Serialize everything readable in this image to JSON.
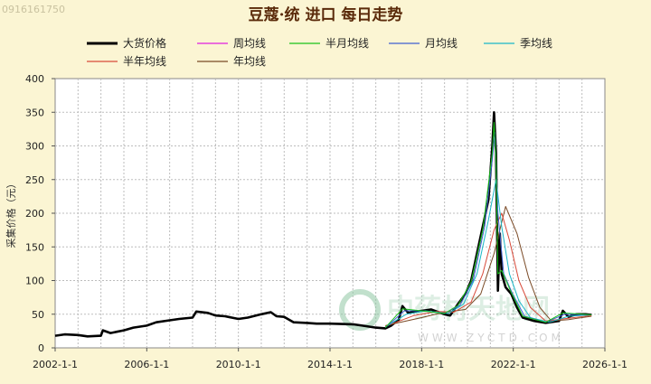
{
  "watermark_id": "0916161750",
  "chart_data": {
    "type": "line",
    "title": "豆蔻·统 进口 每日走势",
    "xlabel": "",
    "ylabel": "采集价格（元）",
    "xlim": [
      "2002-1-1",
      "2026-1-1"
    ],
    "ylim": [
      0,
      400
    ],
    "x_ticks": [
      "2002-1-1",
      "2006-1-1",
      "2010-1-1",
      "2014-1-1",
      "2018-1-1",
      "2022-1-1",
      "2026-1-1"
    ],
    "y_ticks": [
      0,
      50,
      100,
      150,
      200,
      250,
      300,
      350,
      400
    ],
    "grid": true,
    "legend_position": "top",
    "series": [
      {
        "name": "大货价格",
        "color": "#000000",
        "points": [
          [
            "2002-01-01",
            18
          ],
          [
            "2002-06-01",
            20
          ],
          [
            "2003-01-01",
            19
          ],
          [
            "2003-06-01",
            17
          ],
          [
            "2004-01-01",
            18
          ],
          [
            "2004-02-01",
            26
          ],
          [
            "2004-06-01",
            22
          ],
          [
            "2005-01-01",
            26
          ],
          [
            "2005-06-01",
            30
          ],
          [
            "2006-01-01",
            33
          ],
          [
            "2006-06-01",
            38
          ],
          [
            "2007-01-01",
            41
          ],
          [
            "2007-06-01",
            43
          ],
          [
            "2008-01-01",
            45
          ],
          [
            "2008-03-01",
            54
          ],
          [
            "2008-09-01",
            52
          ],
          [
            "2009-01-01",
            48
          ],
          [
            "2009-06-01",
            47
          ],
          [
            "2010-01-01",
            43
          ],
          [
            "2010-06-01",
            45
          ],
          [
            "2011-01-01",
            50
          ],
          [
            "2011-06-01",
            53
          ],
          [
            "2011-09-01",
            47
          ],
          [
            "2012-01-01",
            46
          ],
          [
            "2012-06-01",
            38
          ],
          [
            "2013-01-01",
            37
          ],
          [
            "2013-06-01",
            36
          ],
          [
            "2014-01-01",
            36
          ],
          [
            "2015-01-01",
            35
          ],
          [
            "2015-06-01",
            33
          ],
          [
            "2016-01-01",
            30
          ],
          [
            "2016-06-01",
            29
          ],
          [
            "2016-09-01",
            33
          ],
          [
            "2017-01-01",
            42
          ],
          [
            "2017-03-01",
            62
          ],
          [
            "2017-06-01",
            52
          ],
          [
            "2018-01-01",
            55
          ],
          [
            "2018-06-01",
            57
          ],
          [
            "2019-01-01",
            50
          ],
          [
            "2019-04-01",
            48
          ],
          [
            "2019-08-01",
            65
          ],
          [
            "2019-12-01",
            80
          ],
          [
            "2020-03-01",
            100
          ],
          [
            "2020-06-01",
            140
          ],
          [
            "2020-09-01",
            180
          ],
          [
            "2020-12-01",
            220
          ],
          [
            "2021-02-01",
            300
          ],
          [
            "2021-03-01",
            350
          ],
          [
            "2021-04-01",
            290
          ],
          [
            "2021-05-01",
            85
          ],
          [
            "2021-06-01",
            170
          ],
          [
            "2021-07-01",
            110
          ],
          [
            "2021-09-01",
            90
          ],
          [
            "2021-12-01",
            80
          ],
          [
            "2022-03-01",
            60
          ],
          [
            "2022-06-01",
            45
          ],
          [
            "2022-12-01",
            40
          ],
          [
            "2023-06-01",
            37
          ],
          [
            "2024-01-01",
            40
          ],
          [
            "2024-03-01",
            55
          ],
          [
            "2024-06-01",
            46
          ],
          [
            "2024-10-01",
            50
          ],
          [
            "2025-03-01",
            50
          ],
          [
            "2025-06-01",
            49
          ]
        ]
      },
      {
        "name": "周均线",
        "color": "#e01ee0",
        "points": []
      },
      {
        "name": "半月均线",
        "color": "#19c219",
        "points": [
          [
            "2016-06-01",
            30
          ],
          [
            "2017-03-01",
            58
          ],
          [
            "2018-01-01",
            55
          ],
          [
            "2019-01-01",
            51
          ],
          [
            "2019-08-01",
            63
          ],
          [
            "2020-03-01",
            98
          ],
          [
            "2020-09-01",
            175
          ],
          [
            "2021-02-01",
            290
          ],
          [
            "2021-03-01",
            335
          ],
          [
            "2021-04-01",
            280
          ],
          [
            "2021-05-01",
            110
          ],
          [
            "2021-07-01",
            115
          ],
          [
            "2021-12-01",
            82
          ],
          [
            "2022-06-01",
            47
          ],
          [
            "2023-06-01",
            38
          ],
          [
            "2024-03-01",
            52
          ],
          [
            "2025-06-01",
            49
          ]
        ]
      },
      {
        "name": "月均线",
        "color": "#3f5fd0",
        "points": [
          [
            "2016-06-01",
            30
          ],
          [
            "2017-04-01",
            55
          ],
          [
            "2018-01-01",
            55
          ],
          [
            "2019-01-01",
            51
          ],
          [
            "2019-09-01",
            63
          ],
          [
            "2020-04-01",
            100
          ],
          [
            "2020-10-01",
            180
          ],
          [
            "2021-02-01",
            280
          ],
          [
            "2021-03-15",
            320
          ],
          [
            "2021-05-01",
            200
          ],
          [
            "2021-08-01",
            110
          ],
          [
            "2022-01-01",
            78
          ],
          [
            "2022-07-01",
            47
          ],
          [
            "2023-06-01",
            38
          ],
          [
            "2024-04-01",
            50
          ],
          [
            "2025-06-01",
            49
          ]
        ]
      },
      {
        "name": "季均线",
        "color": "#19b7c7",
        "points": [
          [
            "2016-06-01",
            31
          ],
          [
            "2017-05-01",
            50
          ],
          [
            "2018-03-01",
            55
          ],
          [
            "2019-03-01",
            51
          ],
          [
            "2019-11-01",
            65
          ],
          [
            "2020-06-01",
            110
          ],
          [
            "2020-12-01",
            190
          ],
          [
            "2021-04-01",
            250
          ],
          [
            "2021-07-01",
            180
          ],
          [
            "2021-11-01",
            110
          ],
          [
            "2022-04-01",
            70
          ],
          [
            "2022-10-01",
            45
          ],
          [
            "2023-08-01",
            38
          ],
          [
            "2024-06-01",
            47
          ],
          [
            "2025-06-01",
            49
          ]
        ]
      },
      {
        "name": "半年均线",
        "color": "#d84a3a",
        "points": [
          [
            "2016-06-01",
            32
          ],
          [
            "2017-09-01",
            48
          ],
          [
            "2018-09-01",
            54
          ],
          [
            "2019-06-01",
            53
          ],
          [
            "2020-03-01",
            68
          ],
          [
            "2020-09-01",
            110
          ],
          [
            "2021-03-01",
            175
          ],
          [
            "2021-07-01",
            200
          ],
          [
            "2021-11-01",
            160
          ],
          [
            "2022-04-01",
            100
          ],
          [
            "2022-10-01",
            60
          ],
          [
            "2023-06-01",
            40
          ],
          [
            "2024-06-01",
            44
          ],
          [
            "2025-06-01",
            48
          ]
        ]
      },
      {
        "name": "年均线",
        "color": "#7a4a26",
        "points": [
          [
            "2016-06-01",
            33
          ],
          [
            "2018-01-01",
            45
          ],
          [
            "2019-01-01",
            53
          ],
          [
            "2019-12-01",
            57
          ],
          [
            "2020-08-01",
            80
          ],
          [
            "2021-03-01",
            140
          ],
          [
            "2021-09-01",
            210
          ],
          [
            "2022-03-01",
            170
          ],
          [
            "2022-09-01",
            105
          ],
          [
            "2023-03-01",
            60
          ],
          [
            "2023-09-01",
            40
          ],
          [
            "2024-06-01",
            42
          ],
          [
            "2025-06-01",
            47
          ]
        ]
      }
    ]
  }
}
